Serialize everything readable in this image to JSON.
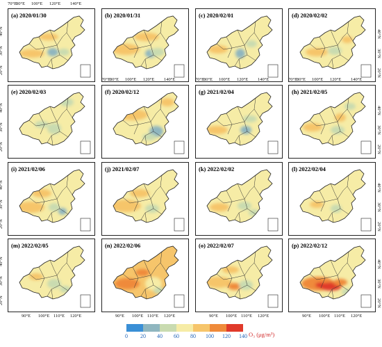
{
  "panels": [
    {
      "label": "(a) 2020/01/30",
      "variant": "a"
    },
    {
      "label": "(b) 2020/01/31",
      "variant": "b"
    },
    {
      "label": "(c) 2020/02/01",
      "variant": "c"
    },
    {
      "label": "(d) 2020/02/02",
      "variant": "d"
    },
    {
      "label": "(e) 2020/02/03",
      "variant": "e"
    },
    {
      "label": "(f) 2020/02/12",
      "variant": "f"
    },
    {
      "label": "(g) 2021/02/04",
      "variant": "g"
    },
    {
      "label": "(h) 2021/02/05",
      "variant": "h"
    },
    {
      "label": "(i) 2021/02/06",
      "variant": "i"
    },
    {
      "label": "(j) 2021/02/07",
      "variant": "j"
    },
    {
      "label": "(k) 2022/02/02",
      "variant": "k"
    },
    {
      "label": "(l) 2022/02/04",
      "variant": "l"
    },
    {
      "label": "(m) 2022/02/05",
      "variant": "m"
    },
    {
      "label": "(n) 2022/02/06",
      "variant": "n"
    },
    {
      "label": "(o) 2022/02/07",
      "variant": "o"
    },
    {
      "label": "(p) 2022/02/12",
      "variant": "p"
    }
  ],
  "axes": {
    "top_lon_ticks": [
      "70°E",
      "80°E",
      "100°E",
      "120°E",
      "140°E"
    ],
    "bottom_lon_ticks": [
      "90°E",
      "100°E",
      "110°E",
      "120°E"
    ],
    "lat_ticks": [
      "40°N",
      "30°N",
      "20°N"
    ]
  },
  "colorbar": {
    "ticks": [
      "0",
      "20",
      "40",
      "60",
      "80",
      "100",
      "120",
      "140"
    ],
    "colors": [
      "#3a8fd6",
      "#8fb6bf",
      "#c9dbb0",
      "#f6eca6",
      "#f6c56b",
      "#ef8a3a",
      "#e03a2a"
    ],
    "unit_label": "O₃ (μg/m³)"
  }
}
